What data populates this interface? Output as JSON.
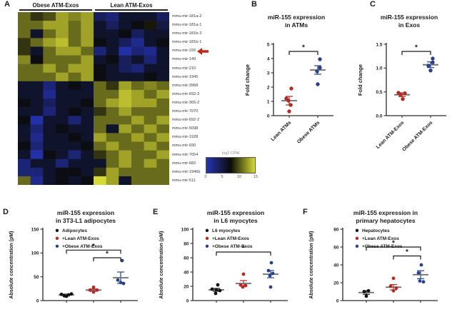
{
  "panel_labels": {
    "a": "A",
    "b": "B",
    "c": "C",
    "d": "D",
    "e": "E",
    "f": "F"
  },
  "colors": {
    "red": "#b02c24",
    "blue": "#27418a",
    "black": "#121212",
    "mean_line": "#6b6b6b",
    "arrow": "#c0281e",
    "axis": "#2b2b2b"
  },
  "chart_data": [
    {
      "id": "mirna-heatmap",
      "type": "heatmap",
      "panel": "A",
      "col_groups": [
        "Obese ATM-Exos",
        "Lean ATM-Exos"
      ],
      "row_labels": [
        "mmu-mir-181a-2",
        "mmu-mir-181a-1",
        "mmu-mir-181b-2",
        "mmu-mir-181b-1",
        "mmu-mir-155",
        "mmu-mir-149",
        "mmu-mir-210",
        "mmu-mir-1945",
        "mmu-mir-3968",
        "mmu-mir-692-3",
        "mmu-mir-365-2",
        "mmu-mir-7070",
        "mmu-mir-692-2",
        "mmu-mir-5098",
        "mmu-mir-1928",
        "mmu-mir-690",
        "mmu-mir-7054",
        "mmu-mir-682",
        "mmu-mir-1946b",
        "mmu-mir-511"
      ],
      "highlight_row": "mmu-mir-155",
      "colorbar": {
        "label": "log2 CPM",
        "ticks": [
          "0",
          "5",
          "10",
          "15"
        ],
        "min": 0,
        "max": 15
      },
      "values": [
        [
          11,
          9,
          10,
          13,
          12,
          13,
          4,
          3,
          6,
          6,
          6,
          4
        ],
        [
          11,
          11,
          13,
          13,
          11,
          13,
          6,
          4,
          6,
          7,
          8,
          5
        ],
        [
          11,
          6,
          11,
          13,
          11,
          13,
          6,
          6,
          7,
          4,
          6,
          6
        ],
        [
          9,
          11,
          13,
          14,
          11,
          13,
          7,
          6,
          4,
          2,
          6,
          7
        ],
        [
          9,
          6,
          11,
          13,
          13,
          11,
          3,
          6,
          1,
          3,
          2,
          6
        ],
        [
          12,
          7,
          11,
          11,
          11,
          13,
          6,
          7,
          4,
          6,
          3,
          6
        ],
        [
          11,
          11,
          13,
          11,
          13,
          13,
          7,
          6,
          4,
          3,
          6,
          6
        ],
        [
          11,
          11,
          11,
          13,
          11,
          13,
          7,
          6,
          6,
          6,
          7,
          6
        ],
        [
          6,
          6,
          3,
          6,
          7,
          6,
          11,
          9,
          13,
          11,
          12,
          11
        ],
        [
          6,
          6,
          2,
          6,
          6,
          6,
          11,
          11,
          14,
          13,
          11,
          13
        ],
        [
          7,
          6,
          4,
          6,
          6,
          7,
          11,
          13,
          14,
          13,
          13,
          11
        ],
        [
          6,
          6,
          3,
          6,
          7,
          6,
          9,
          11,
          13,
          11,
          11,
          11
        ],
        [
          7,
          1,
          6,
          6,
          3,
          6,
          11,
          11,
          11,
          13,
          11,
          13
        ],
        [
          6,
          3,
          6,
          7,
          6,
          6,
          11,
          6,
          13,
          11,
          13,
          11
        ],
        [
          6,
          2,
          6,
          6,
          7,
          6,
          13,
          11,
          11,
          13,
          11,
          13
        ],
        [
          7,
          3,
          6,
          6,
          6,
          7,
          11,
          13,
          11,
          11,
          13,
          11
        ],
        [
          6,
          1,
          7,
          6,
          3,
          6,
          9,
          11,
          13,
          11,
          11,
          13
        ],
        [
          3,
          6,
          6,
          3,
          6,
          6,
          6,
          11,
          13,
          11,
          13,
          11
        ],
        [
          3,
          3,
          6,
          7,
          7,
          6,
          9,
          13,
          11,
          11,
          11,
          11
        ],
        [
          11,
          2,
          6,
          7,
          6,
          7,
          15,
          13,
          6,
          11,
          11,
          11
        ]
      ]
    },
    {
      "id": "atms",
      "type": "scatter",
      "panel": "B",
      "title": [
        "miR-155 expression",
        "in ATMs"
      ],
      "ylabel": "Fold change",
      "ylim": [
        0,
        5
      ],
      "yticks": [
        0,
        1,
        2,
        3,
        4,
        5
      ],
      "ytick_labels": [
        "0",
        "1",
        "2",
        "3",
        "4",
        "5"
      ],
      "x_rot_labels": true,
      "legend": false,
      "groups": [
        {
          "label": "Lean ATMs",
          "color": "#b02c24",
          "mean": 1.05,
          "sem": 0.3,
          "points": [
            [
              3,
              1.9
            ],
            [
              -4,
              1.2
            ],
            [
              -1,
              1.05
            ],
            [
              2,
              0.75
            ],
            [
              0,
              0.3
            ]
          ]
        },
        {
          "label": "Obese ATMs",
          "color": "#27418a",
          "mean": 3.2,
          "sem": 0.3,
          "points": [
            [
              3,
              3.95
            ],
            [
              3,
              3.35
            ],
            [
              -1,
              3.1
            ],
            [
              0,
              2.2
            ]
          ]
        }
      ],
      "brackets": [
        {
          "from": 0,
          "to": 1,
          "y": 4.5,
          "label": "*"
        }
      ]
    },
    {
      "id": "exos",
      "type": "scatter",
      "panel": "C",
      "title": [
        "miR-155 expression",
        "in Exos"
      ],
      "ylabel": "Fold change",
      "ylim": [
        0,
        1.5
      ],
      "yticks": [
        0,
        0.5,
        1.0,
        1.5
      ],
      "ytick_labels": [
        "0.0",
        "0.5",
        "1.0",
        "1.5"
      ],
      "x_rot_labels": true,
      "legend": false,
      "groups": [
        {
          "label": "Lean ATM-Exos",
          "color": "#b02c24",
          "mean": 0.44,
          "sem": 0.04,
          "points": [
            [
              -5,
              0.48
            ],
            [
              4,
              0.47
            ],
            [
              -2,
              0.44
            ],
            [
              1,
              0.35
            ]
          ]
        },
        {
          "label": "Obese ATM-Exos",
          "color": "#27418a",
          "mean": 1.07,
          "sem": 0.06,
          "points": [
            [
              3,
              1.2
            ],
            [
              3,
              1.12
            ],
            [
              -3,
              1.05
            ],
            [
              0,
              0.95
            ]
          ]
        }
      ],
      "brackets": [
        {
          "from": 0,
          "to": 1,
          "y": 1.35,
          "label": "*"
        }
      ]
    },
    {
      "id": "adipocytes",
      "type": "scatter",
      "panel": "D",
      "title": [
        "miR-155 expression",
        "in 3T3-L1 adipocytes"
      ],
      "ylabel": "Absolute concentration (pM)",
      "ylim": [
        0,
        150
      ],
      "yticks": [
        0,
        50,
        100,
        150
      ],
      "ytick_labels": [
        "0",
        "50",
        "100",
        "150"
      ],
      "x_rot_labels": false,
      "legend": true,
      "groups": [
        {
          "label": "Adipocytes",
          "color": "#121212",
          "mean": 12,
          "sem": 1.5,
          "points": [
            [
              -7,
              13
            ],
            [
              -3,
              10
            ],
            [
              0,
              9
            ],
            [
              3,
              12
            ],
            [
              7,
              14
            ]
          ]
        },
        {
          "label": "+Lean ATM-Exos",
          "color": "#b02c24",
          "mean": 22,
          "sem": 2.5,
          "points": [
            [
              0,
              28
            ],
            [
              -5,
              22
            ],
            [
              5,
              22
            ],
            [
              0,
              18
            ]
          ]
        },
        {
          "label": "+Obese ATM-Exos",
          "color": "#27418a",
          "mean": 48,
          "sem": 12,
          "points": [
            [
              2,
              84
            ],
            [
              -4,
              43
            ],
            [
              0,
              38
            ],
            [
              4,
              36
            ]
          ]
        }
      ],
      "brackets": [
        {
          "from": 0,
          "to": 2,
          "y": 106,
          "label": "*"
        },
        {
          "from": 1,
          "to": 2,
          "y": 90,
          "label": "*"
        }
      ]
    },
    {
      "id": "myocytes",
      "type": "scatter",
      "panel": "E",
      "title": [
        "miR-155 expression",
        "in L6 myocytes"
      ],
      "ylabel": "Absolute concentration (pM)",
      "ylim": [
        0,
        100
      ],
      "yticks": [
        0,
        20,
        40,
        60,
        80,
        100
      ],
      "ytick_labels": [
        "0",
        "20",
        "40",
        "60",
        "80",
        "100"
      ],
      "x_rot_labels": false,
      "legend": true,
      "groups": [
        {
          "label": "L6 myocytes",
          "color": "#121212",
          "mean": 15,
          "sem": 2,
          "points": [
            [
              2,
              22
            ],
            [
              -6,
              16
            ],
            [
              0,
              15
            ],
            [
              5,
              14
            ],
            [
              -1,
              10
            ]
          ]
        },
        {
          "label": "+Lean ATM-Exos",
          "color": "#b02c24",
          "mean": 24,
          "sem": 4,
          "points": [
            [
              0,
              37
            ],
            [
              -4,
              22
            ],
            [
              3,
              21
            ],
            [
              -1,
              19
            ]
          ]
        },
        {
          "label": "+Obese ATM-Exos",
          "color": "#27418a",
          "mean": 37,
          "sem": 5,
          "points": [
            [
              1,
              53
            ],
            [
              -3,
              42
            ],
            [
              3,
              38
            ],
            [
              -1,
              35
            ],
            [
              0,
              19
            ]
          ]
        }
      ],
      "brackets": [
        {
          "from": 0,
          "to": 2,
          "y": 68,
          "label": "*"
        }
      ]
    },
    {
      "id": "hepatocytes",
      "type": "scatter",
      "panel": "F",
      "title": [
        "miR-155 expression in",
        "primary hepatocytes"
      ],
      "ylabel": "Absolute concentration (pM)",
      "ylim": [
        0,
        80
      ],
      "yticks": [
        0,
        20,
        40,
        60,
        80
      ],
      "ytick_labels": [
        "0",
        "20",
        "40",
        "60",
        "80"
      ],
      "x_rot_labels": false,
      "legend": true,
      "groups": [
        {
          "label": "Hepatocytes",
          "color": "#121212",
          "mean": 9,
          "sem": 2,
          "points": [
            [
              3,
              11
            ],
            [
              -3,
              10
            ],
            [
              0,
              5
            ]
          ]
        },
        {
          "label": "+Lean ATM-Exos",
          "color": "#b02c24",
          "mean": 15,
          "sem": 3,
          "points": [
            [
              0,
              25
            ],
            [
              -4,
              16
            ],
            [
              4,
              14
            ],
            [
              0,
              11
            ]
          ]
        },
        {
          "label": "+Obese ATM-Exos",
          "color": "#27418a",
          "mean": 29,
          "sem": 4.5,
          "points": [
            [
              1,
              40
            ],
            [
              -3,
              31
            ],
            [
              -1,
              22
            ],
            [
              4,
              21
            ]
          ]
        }
      ],
      "brackets": [
        {
          "from": 0,
          "to": 2,
          "y": 60,
          "label": "*"
        },
        {
          "from": 1,
          "to": 2,
          "y": 50,
          "label": "*"
        }
      ]
    }
  ]
}
